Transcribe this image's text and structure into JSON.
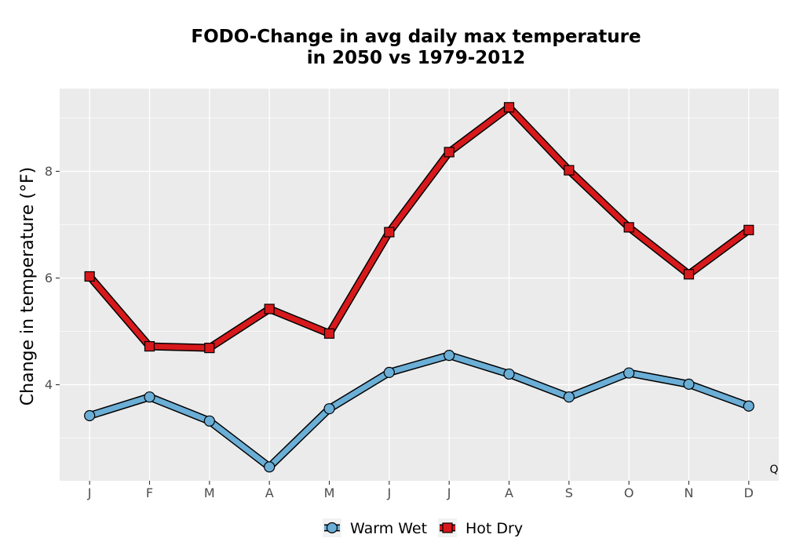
{
  "chart_data": {
    "type": "line",
    "title_lines": [
      "FODO-Change in avg daily max temperature",
      "in 2050 vs 1979-2012"
    ],
    "xlabel": "",
    "ylabel": "Change in temperature (°F)",
    "categories": [
      "J",
      "F",
      "M",
      "A",
      "M",
      "J",
      "J",
      "A",
      "S",
      "O",
      "N",
      "D"
    ],
    "ylim": [
      2.2,
      9.55
    ],
    "yticks": [
      4,
      6,
      8
    ],
    "grid": true,
    "legend_position": "bottom",
    "corner_label": "Q",
    "series": [
      {
        "name": "Warm Wet",
        "color": "#6baed6",
        "marker": "circle",
        "values": [
          3.42,
          3.77,
          3.32,
          2.46,
          3.55,
          4.23,
          4.55,
          4.2,
          3.77,
          4.22,
          4.01,
          3.6
        ]
      },
      {
        "name": "Hot Dry",
        "color": "#d7191c",
        "marker": "square",
        "values": [
          6.03,
          4.72,
          4.69,
          5.42,
          4.96,
          6.86,
          8.36,
          9.2,
          8.02,
          6.95,
          6.07,
          6.9
        ]
      }
    ]
  }
}
